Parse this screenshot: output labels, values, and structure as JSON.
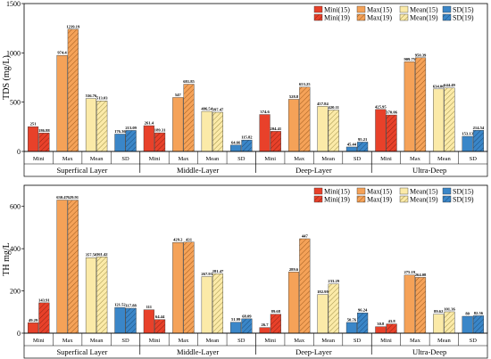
{
  "chart_data": [
    {
      "type": "bar",
      "ylabel": "TDS (mg/L)",
      "ylim": [
        0,
        1500
      ],
      "yticks": [
        0,
        500,
        1000,
        1500
      ],
      "groups": [
        "Superfical Layer",
        "Middle-Layer",
        "Deep-Layer",
        "Ultra-Deep"
      ],
      "categories": [
        "Mini",
        "Max",
        "Mean",
        "SD"
      ],
      "legend": [
        "Mini(15)",
        "Mini(19)",
        "Max(15)",
        "Max(19)",
        "Mean(15)",
        "Mean(19)",
        "SD(15)",
        "SD(19)"
      ],
      "legend_position": "top-right",
      "values": [
        [
          [
            251,
            186.88
          ],
          [
            974.4,
            1239.19
          ],
          [
            536.76,
            513.03
          ],
          [
            176.36,
            213.09
          ]
        ],
        [
          [
            261.4,
            189.31
          ],
          [
            547,
            681.85
          ],
          [
            406.54,
            397.47
          ],
          [
            64.66,
            115.82
          ]
        ],
        [
          [
            374.6,
            204.41
          ],
          [
            528.8,
            653.25
          ],
          [
            457.84,
            420.11
          ],
          [
            45.44,
            95.21
          ]
        ],
        [
          [
            425.95,
            370.06
          ],
          [
            909.75,
            950.39
          ],
          [
            634.06,
            644.49
          ],
          [
            153.13,
            214.54
          ]
        ]
      ],
      "labels": [
        [
          [
            "251",
            "186.88"
          ],
          [
            "974.4",
            "1239.19"
          ],
          [
            "536.76",
            "513.03"
          ],
          [
            "176.36",
            "213.09"
          ]
        ],
        [
          [
            "261.4",
            "189.31"
          ],
          [
            "547",
            "681.85"
          ],
          [
            "406.54",
            "397.47"
          ],
          [
            "64.66",
            "115.82"
          ]
        ],
        [
          [
            "374.6",
            "204.41"
          ],
          [
            "528.8",
            "653.25"
          ],
          [
            "457.84",
            "420.11"
          ],
          [
            "45.44",
            "95.21"
          ]
        ],
        [
          [
            "425.95",
            "370.06"
          ],
          [
            "909.75",
            "950.39"
          ],
          [
            "634.06",
            "644.49"
          ],
          [
            "153.13",
            "214.54"
          ]
        ]
      ]
    },
    {
      "type": "bar",
      "ylabel": "TH mg/L",
      "ylim": [
        0,
        700
      ],
      "yticks": [
        0,
        200,
        400,
        600
      ],
      "groups": [
        "Superfical Layer",
        "Middle-Layer",
        "Deep-Layer",
        "Ultra-Deep"
      ],
      "categories": [
        "Mini",
        "Max",
        "Mean",
        "SD"
      ],
      "legend": [
        "Mini(15)",
        "Mini(19)",
        "Max(15)",
        "Max(19)",
        "Mean(15)",
        "Mean(19)",
        "SD(15)",
        "SD(19)"
      ],
      "legend_position": "top-right",
      "values": [
        [
          [
            49.29,
            143.91
          ],
          [
            630.47,
            629.91
          ],
          [
            357.58,
            361.42
          ],
          [
            121.52,
            117.88
          ]
        ],
        [
          [
            111,
            64.44
          ],
          [
            429.2,
            431
          ],
          [
            267.93,
            281.47
          ],
          [
            51.99,
            68.09
          ]
        ],
        [
          [
            26.7,
            89.68
          ],
          [
            289.6,
            447
          ],
          [
            182.99,
            233.29
          ],
          [
            50.76,
            96.24
          ]
        ],
        [
          [
            30.8,
            43.8
          ],
          [
            275.19,
            264.08
          ],
          [
            89.62,
            101.36
          ],
          [
            80,
            82.56
          ]
        ]
      ],
      "labels": [
        [
          [
            "49.29",
            "143.91"
          ],
          [
            "630.47",
            "629.91"
          ],
          [
            "357.58",
            "361.42"
          ],
          [
            "121.52",
            "117.88"
          ]
        ],
        [
          [
            "111",
            "64.44"
          ],
          [
            "429.2",
            "431"
          ],
          [
            "267.93",
            "281.47"
          ],
          [
            "51.99",
            "68.09"
          ]
        ],
        [
          [
            "26.7",
            "89.68"
          ],
          [
            "289.6",
            "447"
          ],
          [
            "182.99",
            "233.29"
          ],
          [
            "50.76",
            "96.24"
          ]
        ],
        [
          [
            "30.8",
            "43.8"
          ],
          [
            "275.19",
            "264.08"
          ],
          [
            "89.62",
            "101.36"
          ],
          [
            "80",
            "82.56"
          ]
        ]
      ]
    }
  ],
  "colors": {
    "Mini(15)": "#e8412a",
    "Mini(19)": "#e8412a",
    "Max(15)": "#f5a258",
    "Max(19)": "#f5a258",
    "Mean(15)": "#fbeaa8",
    "Mean(19)": "#fbeaa8",
    "SD(15)": "#3a86c8",
    "SD(19)": "#3a86c8"
  }
}
